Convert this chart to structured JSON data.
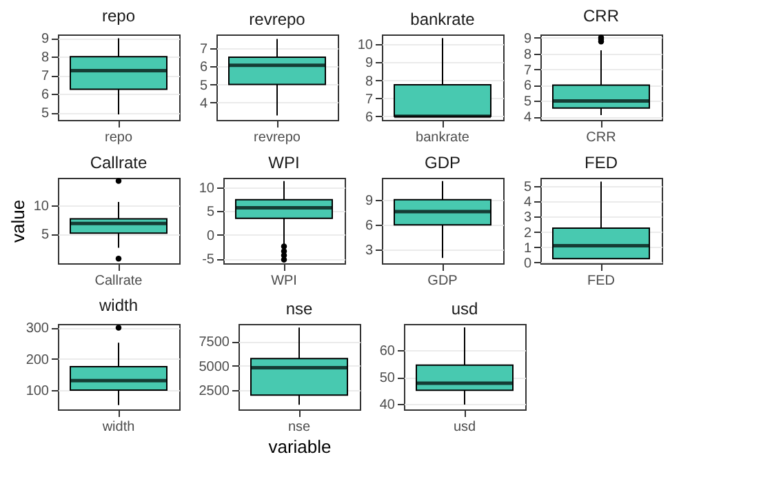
{
  "chart_data": [
    {
      "type": "box",
      "title": "repo",
      "categories": [
        "repo"
      ],
      "color": "#48c9b0",
      "grid": true,
      "ylim": [
        4.6,
        9.2
      ],
      "yticks": [
        5,
        6,
        7,
        8,
        9
      ],
      "boxes": [
        {
          "low": 4.9,
          "q1": 6.25,
          "median": 7.25,
          "q3": 8,
          "high": 9
        }
      ]
    },
    {
      "type": "box",
      "title": "revrepo",
      "categories": [
        "revrepo"
      ],
      "color": "#48c9b0",
      "grid": true,
      "ylim": [
        3.05,
        7.75
      ],
      "yticks": [
        4,
        5,
        6,
        7
      ],
      "boxes": [
        {
          "low": 3.3,
          "q1": 5,
          "median": 6.05,
          "q3": 6.5,
          "high": 7.5
        }
      ]
    },
    {
      "type": "box",
      "title": "bankrate",
      "categories": [
        "bankrate"
      ],
      "color": "#48c9b0",
      "grid": true,
      "ylim": [
        5.8,
        10.55
      ],
      "yticks": [
        6,
        7,
        8,
        9,
        10
      ],
      "boxes": [
        {
          "low": 6,
          "q1": 6,
          "median": 6,
          "q3": 7.75,
          "high": 10.35
        }
      ]
    },
    {
      "type": "box",
      "title": "CRR",
      "categories": [
        "CRR"
      ],
      "color": "#48c9b0",
      "grid": true,
      "ylim": [
        3.8,
        9.2
      ],
      "yticks": [
        4,
        5,
        6,
        7,
        8,
        9
      ],
      "boxes": [
        {
          "low": 4.1,
          "q1": 4.55,
          "median": 5,
          "q3": 6,
          "high": 8.2,
          "outliers": [
            8.75,
            8.9,
            9
          ]
        }
      ]
    },
    {
      "type": "box",
      "title": "Callrate",
      "ylabel": "value",
      "categories": [
        "Callrate"
      ],
      "color": "#48c9b0",
      "grid": true,
      "ylim": [
        -0.15,
        14.75
      ],
      "yticks": [
        5,
        10
      ],
      "boxes": [
        {
          "low": 2.55,
          "q1": 5.1,
          "median": 6.8,
          "q3": 7.6,
          "high": 10.55,
          "outliers": [
            0.65,
            14.2
          ]
        }
      ]
    },
    {
      "type": "box",
      "title": "WPI",
      "categories": [
        "WPI"
      ],
      "color": "#48c9b0",
      "grid": true,
      "ylim": [
        -5.95,
        12
      ],
      "yticks": [
        -5,
        0,
        5,
        10
      ],
      "boxes": [
        {
          "low": -2.1,
          "q1": 3.5,
          "median": 5.7,
          "q3": 7.4,
          "high": 11.3,
          "outliers": [
            -2.4,
            -3.4,
            -4.3,
            -5.2
          ]
        }
      ]
    },
    {
      "type": "box",
      "title": "GDP",
      "categories": [
        "GDP"
      ],
      "color": "#48c9b0",
      "grid": true,
      "ylim": [
        1.35,
        11.7
      ],
      "yticks": [
        3,
        6,
        9
      ],
      "boxes": [
        {
          "low": 2,
          "q1": 6,
          "median": 7.6,
          "q3": 9.05,
          "high": 11.3
        }
      ]
    },
    {
      "type": "box",
      "title": "FED",
      "categories": [
        "FED"
      ],
      "color": "#48c9b0",
      "grid": true,
      "ylim": [
        -0.05,
        5.55
      ],
      "yticks": [
        0,
        1,
        2,
        3,
        4,
        5
      ],
      "boxes": [
        {
          "low": 0.25,
          "q1": 0.25,
          "median": 1.1,
          "q3": 2.25,
          "high": 5.3
        }
      ]
    },
    {
      "type": "box",
      "title": "width",
      "categories": [
        "width"
      ],
      "color": "#48c9b0",
      "grid": true,
      "ylim": [
        38,
        312
      ],
      "yticks": [
        100,
        200,
        300
      ],
      "boxes": [
        {
          "low": 52,
          "q1": 100,
          "median": 130,
          "q3": 175,
          "high": 252,
          "outliers": [
            300
          ]
        }
      ]
    },
    {
      "type": "box",
      "title": "nse",
      "xlabel": "variable",
      "categories": [
        "nse"
      ],
      "color": "#48c9b0",
      "grid": true,
      "ylim": [
        500,
        9300
      ],
      "yticks": [
        2500,
        5000,
        7500
      ],
      "boxes": [
        {
          "low": 980,
          "q1": 1980,
          "median": 4790,
          "q3": 5740,
          "high": 8930
        }
      ]
    },
    {
      "type": "box",
      "title": "usd",
      "categories": [
        "usd"
      ],
      "color": "#48c9b0",
      "grid": true,
      "ylim": [
        38,
        69.7
      ],
      "yticks": [
        40,
        50,
        60
      ],
      "boxes": [
        {
          "low": 39.8,
          "q1": 45.1,
          "median": 47.7,
          "q3": 54.4,
          "high": 68.4
        }
      ]
    }
  ]
}
